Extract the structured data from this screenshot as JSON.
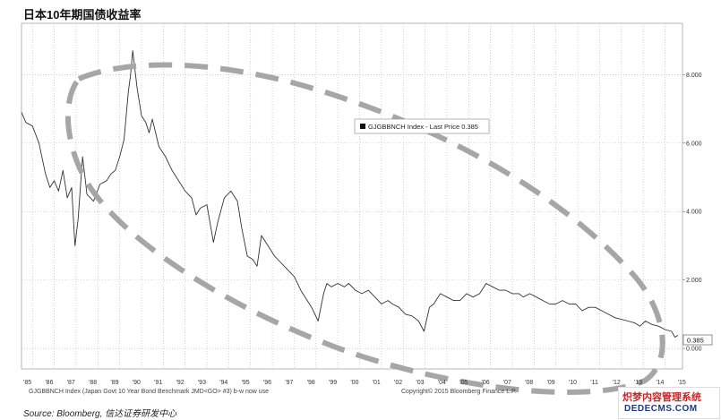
{
  "chart_data": {
    "type": "line",
    "title": "日本10年期国债收益率",
    "legend": {
      "label": "GJGBBNCH Index - Last Price 0.385",
      "placement": "top-center"
    },
    "last_value_label": "0.385",
    "x_ticks": [
      "'85",
      "'86",
      "'87",
      "'88",
      "'89",
      "'90",
      "'91",
      "'92",
      "'93",
      "'94",
      "'95",
      "'96",
      "'97",
      "'98",
      "'99",
      "'00",
      "'01",
      "'02",
      "'03",
      "'04",
      "'05",
      "'06",
      "'07",
      "'08",
      "'09",
      "'10",
      "'11",
      "'12",
      "'13",
      "'14",
      "'15"
    ],
    "y_ticks": [
      "0.000",
      "2.000",
      "4.000",
      "6.000",
      "8.000"
    ],
    "xlim": [
      1985.0,
      2015.3
    ],
    "ylim": [
      -0.6,
      9.5
    ],
    "grid": true,
    "series": [
      {
        "x": [
          1985.0,
          1985.2,
          1985.5,
          1985.8,
          1985.9,
          1986.1,
          1986.3,
          1986.5,
          1986.7,
          1986.9,
          1987.1,
          1987.3,
          1987.45,
          1987.6,
          1987.8,
          1988.0,
          1988.3,
          1988.6,
          1988.9,
          1989.1,
          1989.3,
          1989.5,
          1989.7,
          1989.9,
          1990.0,
          1990.1,
          1990.3,
          1990.5,
          1990.7,
          1990.85,
          1991.0,
          1991.3,
          1991.6,
          1991.9,
          1992.2,
          1992.5,
          1992.8,
          1993.0,
          1993.2,
          1993.5,
          1993.8,
          1994.0,
          1994.3,
          1994.6,
          1994.9,
          1995.1,
          1995.35,
          1995.6,
          1995.8,
          1996.0,
          1996.3,
          1996.6,
          1996.9,
          1997.2,
          1997.5,
          1997.8,
          1998.0,
          1998.3,
          1998.6,
          1998.85,
          1999.0,
          1999.2,
          1999.5,
          1999.8,
          2000.0,
          2000.3,
          2000.6,
          2000.9,
          2001.2,
          2001.5,
          2001.8,
          2002.0,
          2002.3,
          2002.6,
          2002.9,
          2003.2,
          2003.45,
          2003.7,
          2003.9,
          2004.2,
          2004.5,
          2004.8,
          2005.1,
          2005.4,
          2005.7,
          2006.0,
          2006.3,
          2006.6,
          2006.9,
          2007.2,
          2007.5,
          2007.8,
          2008.0,
          2008.3,
          2008.6,
          2008.9,
          2009.2,
          2009.5,
          2009.8,
          2010.1,
          2010.4,
          2010.7,
          2011.0,
          2011.3,
          2011.6,
          2011.9,
          2012.2,
          2012.5,
          2012.8,
          2013.1,
          2013.35,
          2013.6,
          2013.9,
          2014.2,
          2014.5,
          2014.8,
          2014.95,
          2015.1
        ],
        "y": [
          6.9,
          6.6,
          6.5,
          6.0,
          5.7,
          5.1,
          4.7,
          4.9,
          4.6,
          5.2,
          4.4,
          4.7,
          3.0,
          3.8,
          5.6,
          4.5,
          4.3,
          4.8,
          4.9,
          5.1,
          5.2,
          5.6,
          6.1,
          7.5,
          8.0,
          8.7,
          7.6,
          6.8,
          6.6,
          6.3,
          6.7,
          5.9,
          5.6,
          5.2,
          4.9,
          4.6,
          4.4,
          3.9,
          4.1,
          4.2,
          3.1,
          3.7,
          4.4,
          4.6,
          4.3,
          3.5,
          2.7,
          2.6,
          2.4,
          3.3,
          3.0,
          2.7,
          2.5,
          2.3,
          2.1,
          1.7,
          1.5,
          1.2,
          0.8,
          1.6,
          1.9,
          1.8,
          1.9,
          1.8,
          1.9,
          1.7,
          1.6,
          1.7,
          1.5,
          1.3,
          1.4,
          1.3,
          1.2,
          1.0,
          0.95,
          0.8,
          0.5,
          1.2,
          1.3,
          1.6,
          1.5,
          1.4,
          1.4,
          1.6,
          1.5,
          1.6,
          1.9,
          1.8,
          1.7,
          1.7,
          1.6,
          1.6,
          1.5,
          1.6,
          1.5,
          1.4,
          1.3,
          1.3,
          1.4,
          1.3,
          1.3,
          1.1,
          1.2,
          1.2,
          1.1,
          1.0,
          0.9,
          0.85,
          0.8,
          0.75,
          0.65,
          0.8,
          0.7,
          0.65,
          0.55,
          0.5,
          0.33,
          0.385
        ]
      }
    ]
  },
  "footer": {
    "left": "GJGBBNCH Index (Japan Govt 10 Year Bond Benchmark JMD<GO> #3) b-w now use",
    "right": "Copyright© 2015 Bloomberg Finance L.P."
  },
  "source": "Source: Bloomberg, 信达证券研发中心",
  "watermark": {
    "line1": "炽梦内容管理系统",
    "line2": "DEDECMS.COM"
  },
  "colors": {
    "line": "#333333",
    "ellipse": "#a6a6a6",
    "grid": "#b5b5b5"
  }
}
